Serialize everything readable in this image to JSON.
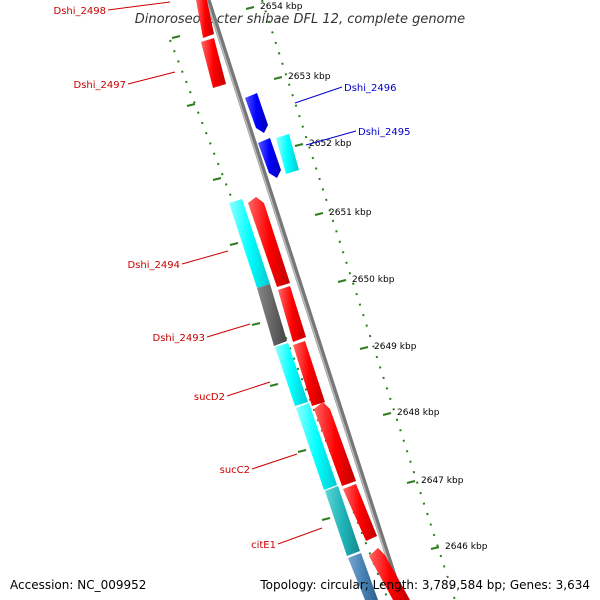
{
  "map": {
    "title": "Dinoroseobacter shibae DFL 12, complete genome",
    "accession": "Accession: NC_009952",
    "summary": "Topology: circular; Length: 3,789,584 bp; Genes: 3,634"
  },
  "colors": {
    "forward_gene": "#ff0000",
    "reverse_gene": "#0000ff",
    "cds_cyan": "#00ffff",
    "dark_teal": "#1fb5b8",
    "steel_blue": "#4682b4",
    "gray_feature": "#666666",
    "backbone": "#888888",
    "tick": "#2e7d1e",
    "label_red": "#cc0000",
    "label_blue": "#0000cc"
  },
  "ticks": [
    {
      "label": "2654 kbp",
      "value": 2654
    },
    {
      "label": "2653 kbp",
      "value": 2653
    },
    {
      "label": "2652 kbp",
      "value": 2652
    },
    {
      "label": "2651 kbp",
      "value": 2651
    },
    {
      "label": "2650 kbp",
      "value": 2650
    },
    {
      "label": "2649 kbp",
      "value": 2649
    },
    {
      "label": "2648 kbp",
      "value": 2648
    },
    {
      "label": "2647 kbp",
      "value": 2647
    },
    {
      "label": "2646 kbp",
      "value": 2646
    }
  ],
  "gene_labels": [
    {
      "name": "Dshi_2498",
      "strand": "forward"
    },
    {
      "name": "Dshi_2497",
      "strand": "forward"
    },
    {
      "name": "Dshi_2496",
      "strand": "reverse"
    },
    {
      "name": "Dshi_2495",
      "strand": "reverse"
    },
    {
      "name": "Dshi_2494",
      "strand": "forward"
    },
    {
      "name": "Dshi_2493",
      "strand": "forward"
    },
    {
      "name": "sucD2",
      "strand": "forward"
    },
    {
      "name": "sucC2",
      "strand": "forward"
    },
    {
      "name": "citE1",
      "strand": "forward"
    }
  ]
}
